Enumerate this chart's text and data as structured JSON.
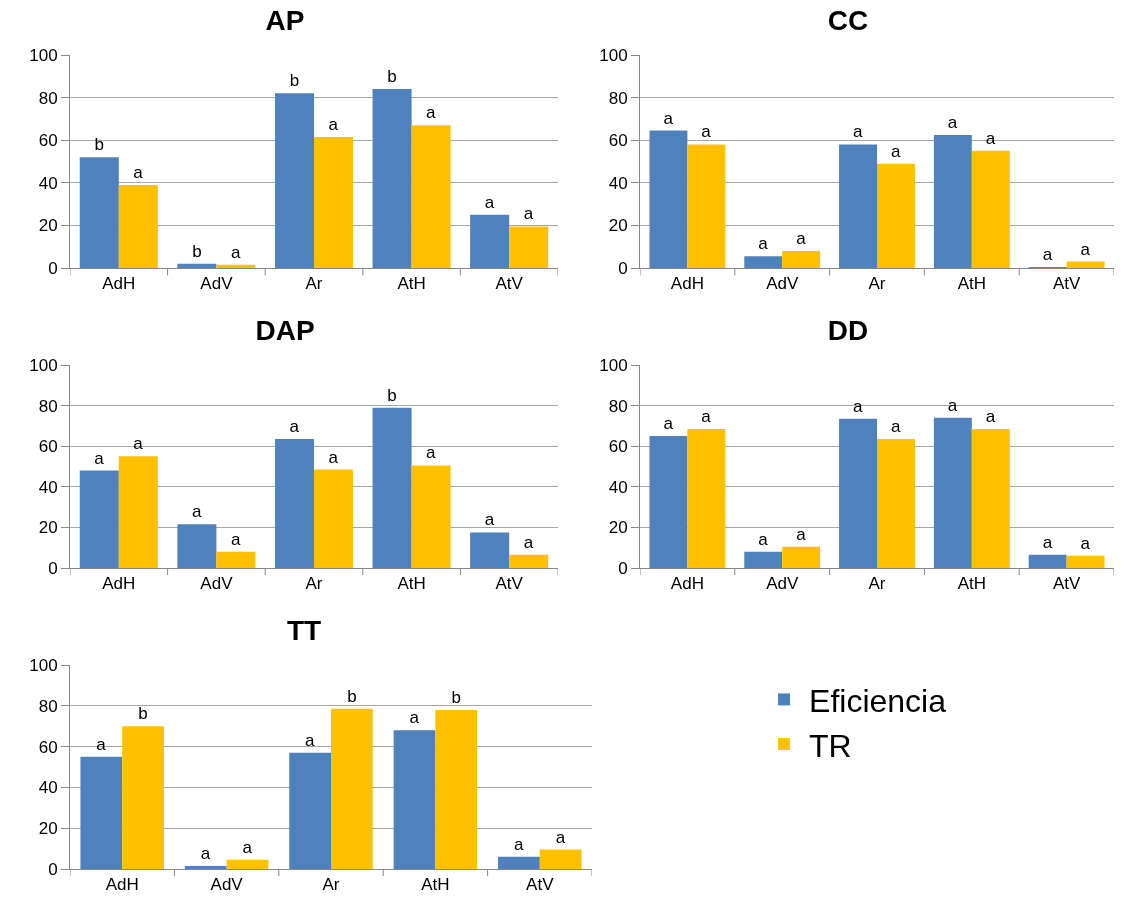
{
  "chart_data": [
    {
      "type": "bar",
      "title": "AP",
      "categories": [
        "AdH",
        "AdV",
        "Ar",
        "AtH",
        "AtV"
      ],
      "ylim": [
        0,
        100
      ],
      "yticks": [
        0,
        20,
        40,
        60,
        80,
        100
      ],
      "grid": "y",
      "legend": false,
      "series": [
        {
          "color": "#4f81bd",
          "values": [
            52,
            2,
            82,
            84,
            25
          ],
          "value_labels": [
            "b",
            "b",
            "b",
            "b",
            "a"
          ]
        },
        {
          "color": "#ffc000",
          "values": [
            39,
            1.5,
            61.5,
            67,
            19.5
          ],
          "value_labels": [
            "a",
            "a",
            "a",
            "a",
            "a"
          ]
        }
      ]
    },
    {
      "type": "bar",
      "title": "CC",
      "categories": [
        "AdH",
        "AdV",
        "Ar",
        "AtH",
        "AtV"
      ],
      "ylim": [
        0,
        100
      ],
      "yticks": [
        0,
        20,
        40,
        60,
        80,
        100
      ],
      "grid": "y",
      "legend": false,
      "series": [
        {
          "color": "#4f81bd",
          "values": [
            64.5,
            5.5,
            58,
            62.5,
            0.5
          ],
          "value_labels": [
            "a",
            "a",
            "a",
            "a",
            "a"
          ]
        },
        {
          "color": "#ffc000",
          "values": [
            58,
            8,
            49,
            55,
            3
          ],
          "value_labels": [
            "a",
            "a",
            "a",
            "a",
            "a"
          ]
        }
      ]
    },
    {
      "type": "bar",
      "title": "DAP",
      "categories": [
        "AdH",
        "AdV",
        "Ar",
        "AtH",
        "AtV"
      ],
      "ylim": [
        0,
        100
      ],
      "yticks": [
        0,
        20,
        40,
        60,
        80,
        100
      ],
      "grid": "y",
      "legend": false,
      "series": [
        {
          "color": "#4f81bd",
          "values": [
            48,
            21.5,
            63.5,
            79,
            17.5
          ],
          "value_labels": [
            "a",
            "a",
            "a",
            "b",
            "a"
          ]
        },
        {
          "color": "#ffc000",
          "values": [
            55,
            8,
            48.5,
            50.5,
            6.5
          ],
          "value_labels": [
            "a",
            "a",
            "a",
            "a",
            "a"
          ]
        }
      ]
    },
    {
      "type": "bar",
      "title": "DD",
      "categories": [
        "AdH",
        "AdV",
        "Ar",
        "AtH",
        "AtV"
      ],
      "ylim": [
        0,
        100
      ],
      "yticks": [
        0,
        20,
        40,
        60,
        80,
        100
      ],
      "grid": "y",
      "legend": false,
      "series": [
        {
          "color": "#4f81bd",
          "values": [
            65,
            8,
            73.5,
            74,
            6.5
          ],
          "value_labels": [
            "a",
            "a",
            "a",
            "a",
            "a"
          ]
        },
        {
          "color": "#ffc000",
          "values": [
            68.5,
            10.5,
            63.5,
            68.5,
            6
          ],
          "value_labels": [
            "a",
            "a",
            "a",
            "a",
            "a"
          ]
        }
      ]
    },
    {
      "type": "bar",
      "title": "TT",
      "categories": [
        "AdH",
        "AdV",
        "Ar",
        "AtH",
        "AtV"
      ],
      "ylim": [
        0,
        100
      ],
      "yticks": [
        0,
        20,
        40,
        60,
        80,
        100
      ],
      "grid": "y",
      "legend": "right",
      "series": [
        {
          "name": "Eficiencia",
          "color": "#4f81bd",
          "values": [
            55,
            1.5,
            57,
            68,
            6
          ],
          "value_labels": [
            "a",
            "a",
            "a",
            "a",
            "a"
          ]
        },
        {
          "name": "TR",
          "color": "#ffc000",
          "values": [
            70,
            4.5,
            78.5,
            78,
            9.5
          ],
          "value_labels": [
            "b",
            "a",
            "b",
            "b",
            "a"
          ]
        }
      ]
    }
  ]
}
